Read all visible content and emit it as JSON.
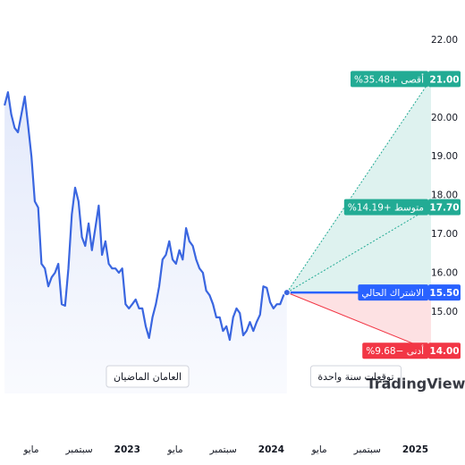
{
  "chart_data": {
    "type": "line",
    "x": [
      1.78,
      2.06,
      2.34,
      2.62,
      2.9,
      3.18,
      3.46,
      3.74,
      4.02,
      4.3,
      4.58,
      4.86,
      5.14,
      5.42,
      5.7,
      5.98,
      6.26,
      6.54,
      6.82,
      7.1,
      7.38,
      7.66,
      7.94,
      8.22,
      8.5,
      8.78,
      9.06,
      9.34,
      9.62,
      9.9,
      10.18,
      10.46,
      10.74,
      11.02,
      11.3,
      11.58,
      11.86,
      12.14,
      12.42,
      12.7,
      12.98,
      13.26,
      13.54,
      13.82,
      14.1,
      14.38,
      14.66,
      14.94,
      15.22,
      15.5,
      15.78,
      16.06,
      16.34,
      16.62,
      16.9,
      17.18,
      17.46,
      17.74,
      18.02,
      18.3,
      18.58,
      18.86,
      19.14,
      19.42,
      19.7,
      19.98,
      20.26,
      20.54,
      20.82,
      21.1,
      21.38,
      21.66,
      21.94,
      22.22,
      22.5,
      22.78,
      23.06,
      23.34,
      23.62,
      23.9,
      24.18,
      24.46,
      24.74,
      25.02,
      25.3
    ],
    "values": [
      20.32,
      20.66,
      20.09,
      19.74,
      19.63,
      20.09,
      20.55,
      19.81,
      19.0,
      17.85,
      17.69,
      16.24,
      16.12,
      15.66,
      15.89,
      16.01,
      16.24,
      15.2,
      15.16,
      16.12,
      17.51,
      18.2,
      17.85,
      16.93,
      16.7,
      17.28,
      16.59,
      17.16,
      17.74,
      16.47,
      16.82,
      16.24,
      16.12,
      16.12,
      16.01,
      16.12,
      15.2,
      15.09,
      15.2,
      15.32,
      15.09,
      15.09,
      14.63,
      14.33,
      14.86,
      15.2,
      15.66,
      16.35,
      16.47,
      16.82,
      16.35,
      16.24,
      16.59,
      16.35,
      17.16,
      16.82,
      16.7,
      16.35,
      16.12,
      16.01,
      15.55,
      15.43,
      15.2,
      14.86,
      14.86,
      14.51,
      14.63,
      14.28,
      14.86,
      15.09,
      14.97,
      14.4,
      14.51,
      14.74,
      14.51,
      14.74,
      14.93,
      15.66,
      15.62,
      15.25,
      15.09,
      15.2,
      15.2,
      15.43,
      15.5
    ],
    "color": "#3a66e0",
    "xlim": [
      1.4,
      37.9
    ],
    "ylim": [
      12.9,
      22.46
    ],
    "xticks": [
      {
        "value": 4,
        "label": "مايو"
      },
      {
        "value": 8,
        "label": "سبتمبر"
      },
      {
        "value": 12,
        "label": "2023"
      },
      {
        "value": 16,
        "label": "مايو"
      },
      {
        "value": 20,
        "label": "سبتمبر"
      },
      {
        "value": 24,
        "label": "2024"
      },
      {
        "value": 28,
        "label": "مايو"
      },
      {
        "value": 32,
        "label": "سبتمبر"
      },
      {
        "value": 36,
        "label": "2025"
      }
    ],
    "yticks": [
      {
        "value": 14,
        "label": "14.00"
      },
      {
        "value": 15,
        "label": "15.00"
      },
      {
        "value": 16,
        "label": "16.00"
      },
      {
        "value": 17,
        "label": "17.00"
      },
      {
        "value": 18,
        "label": "18.00"
      },
      {
        "value": 19,
        "label": "19.00"
      },
      {
        "value": 20,
        "label": "20.00"
      },
      {
        "value": 21,
        "label": "21.00"
      },
      {
        "value": 22,
        "label": "22.00"
      }
    ],
    "grid": false,
    "forecast": {
      "x_end": 37.3,
      "levels": [
        {
          "name": "أقصى +35.48%",
          "value": 21,
          "value_label": "21.00",
          "color": "#22ab94"
        },
        {
          "name": "متوسط +14.19%",
          "value": 17.7,
          "value_label": "17.70",
          "color": "#22ab94"
        },
        {
          "name": "الاشتراك الحالي",
          "value": 15.5,
          "value_label": "15.50",
          "color": "#2962ff"
        },
        {
          "name": "أدنى −9.68%",
          "value": 14,
          "value_label": "14.00",
          "color": "#f23645"
        }
      ]
    },
    "annotations": [
      "العامان الماضيان",
      "توقعات سنة واحدة"
    ],
    "brand": "TradingView"
  }
}
